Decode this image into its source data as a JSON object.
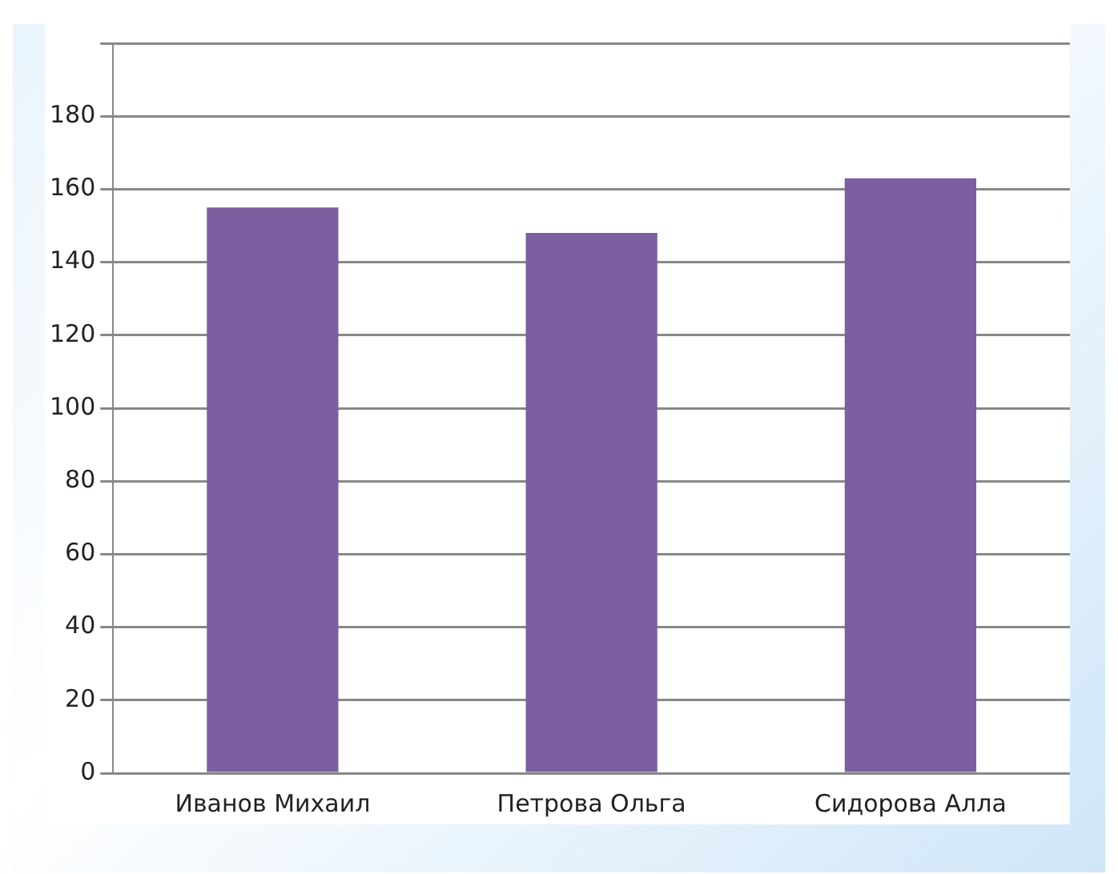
{
  "chart_data": {
    "type": "bar",
    "categories": [
      "Иванов Михаил",
      "Петрова Ольга",
      "Сидорова Алла"
    ],
    "values": [
      155,
      148,
      163
    ],
    "color": "#7b5fa0",
    "ylim": [
      0,
      200
    ],
    "yticks": [
      0,
      20,
      40,
      60,
      80,
      100,
      120,
      140,
      160,
      180,
      {
        "value": 200,
        "label": null
      }
    ],
    "grid": "y",
    "legend": false
  }
}
